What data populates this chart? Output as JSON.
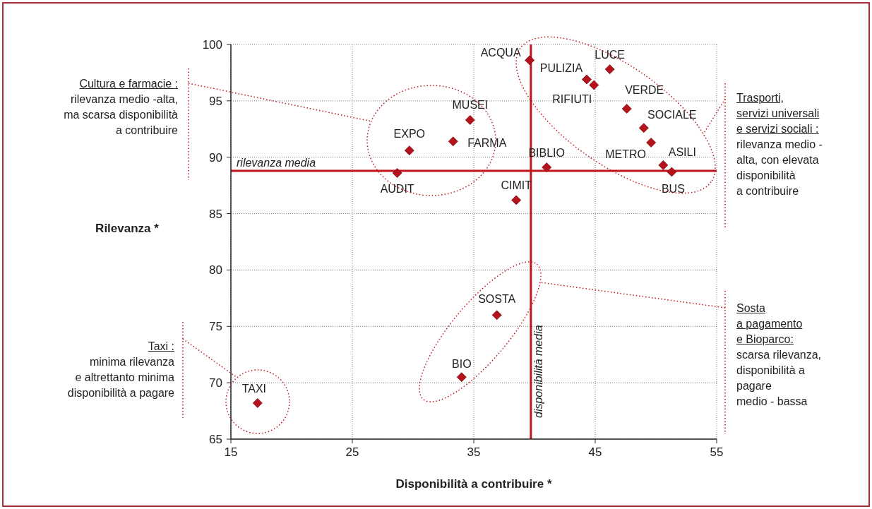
{
  "chart_data": {
    "type": "scatter",
    "xlabel": "Disponibilità a contribuire *",
    "ylabel": "Rilevanza *",
    "xlim": [
      15,
      55
    ],
    "xticks": [
      15,
      25,
      35,
      45,
      55
    ],
    "ylim": [
      65,
      100
    ],
    "yticks": [
      65,
      70,
      75,
      80,
      85,
      90,
      95,
      100
    ],
    "grid": true,
    "marker": "diamond",
    "legend": false,
    "series": [
      {
        "name": "ACQUA",
        "color": "#b5121b",
        "x": [
          39.6
        ],
        "values": [
          98.6
        ]
      },
      {
        "name": "PULIZIA",
        "color": "#b5121b",
        "x": [
          44.3
        ],
        "values": [
          96.9
        ]
      },
      {
        "name": "RIFIUTI",
        "color": "#b5121b",
        "x": [
          44.9
        ],
        "values": [
          96.4
        ]
      },
      {
        "name": "LUCE",
        "color": "#b5121b",
        "x": [
          46.2
        ],
        "values": [
          97.8
        ]
      },
      {
        "name": "VERDE",
        "color": "#b5121b",
        "x": [
          47.6
        ],
        "values": [
          94.3
        ]
      },
      {
        "name": "SOCIALE",
        "color": "#b5121b",
        "x": [
          49.0
        ],
        "values": [
          92.6
        ]
      },
      {
        "name": "METRO",
        "color": "#b5121b",
        "x": [
          49.6
        ],
        "values": [
          91.3
        ]
      },
      {
        "name": "ASILI",
        "color": "#b5121b",
        "x": [
          50.6
        ],
        "values": [
          89.3
        ]
      },
      {
        "name": "BUS",
        "color": "#b5121b",
        "x": [
          51.3
        ],
        "values": [
          88.7
        ]
      },
      {
        "name": "BIBLIO",
        "color": "#b5121b",
        "x": [
          41.0
        ],
        "values": [
          89.1
        ]
      },
      {
        "name": "CIMIT",
        "color": "#b5121b",
        "x": [
          38.5
        ],
        "values": [
          86.2
        ]
      },
      {
        "name": "MUSEI",
        "color": "#b5121b",
        "x": [
          34.7
        ],
        "values": [
          93.3
        ]
      },
      {
        "name": "FARMA",
        "color": "#b5121b",
        "x": [
          33.3
        ],
        "values": [
          91.4
        ]
      },
      {
        "name": "EXPO",
        "color": "#b5121b",
        "x": [
          29.7
        ],
        "values": [
          90.6
        ]
      },
      {
        "name": "AUDIT",
        "color": "#b5121b",
        "x": [
          28.7
        ],
        "values": [
          88.6
        ]
      },
      {
        "name": "TAXI",
        "color": "#b5121b",
        "x": [
          17.2
        ],
        "values": [
          68.2
        ]
      },
      {
        "name": "BIO",
        "color": "#b5121b",
        "x": [
          34.0
        ],
        "values": [
          70.5
        ]
      },
      {
        "name": "SOSTA",
        "color": "#b5121b",
        "x": [
          36.9
        ],
        "values": [
          76.0
        ]
      }
    ],
    "ref_lines": [
      {
        "axis": "y",
        "value": 88.8,
        "label": "rilevanza media",
        "color": "#c0141c"
      },
      {
        "axis": "x",
        "value": 39.7,
        "label": "disponibilità media",
        "color": "#c0141c"
      }
    ],
    "annotations": [
      "Cultura e farmacie :\nrilevanza medio -alta,\nma scarsa disponibilità\na contribuire",
      "Taxi :\nminima rilevanza\ne altrettanto minima\ndisponibilità a pagare",
      "Trasporti,\nservizi universali\ne servizi sociali :\nrilevanza medio -\nalta, con elevata\ndisponibilità\na contribuire",
      "Sosta\na pagamento\ne Bioparco:\nscarsa rilevanza,\ndisponibilità a\npagare\nmedio - bassa"
    ]
  }
}
